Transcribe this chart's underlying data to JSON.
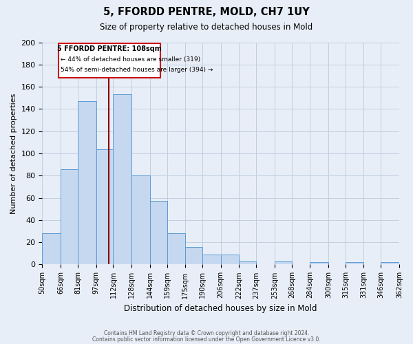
{
  "title": "5, FFORDD PENTRE, MOLD, CH7 1UY",
  "subtitle": "Size of property relative to detached houses in Mold",
  "xlabel": "Distribution of detached houses by size in Mold",
  "ylabel": "Number of detached properties",
  "bin_labels": [
    "50sqm",
    "66sqm",
    "81sqm",
    "97sqm",
    "112sqm",
    "128sqm",
    "144sqm",
    "159sqm",
    "175sqm",
    "190sqm",
    "206sqm",
    "222sqm",
    "237sqm",
    "253sqm",
    "268sqm",
    "284sqm",
    "300sqm",
    "315sqm",
    "331sqm",
    "346sqm",
    "362sqm"
  ],
  "bin_edges": [
    50,
    66,
    81,
    97,
    112,
    128,
    144,
    159,
    175,
    190,
    206,
    222,
    237,
    253,
    268,
    284,
    300,
    315,
    331,
    346,
    362
  ],
  "bar_heights": [
    28,
    86,
    147,
    104,
    153,
    80,
    57,
    28,
    16,
    9,
    9,
    3,
    0,
    3,
    0,
    2,
    0,
    2,
    0,
    2
  ],
  "bar_color": "#c5d8f0",
  "bar_edge_color": "#5b9bd5",
  "property_size": 108,
  "vline_color": "#8b0000",
  "annotation_text_line1": "5 FFORDD PENTRE: 108sqm",
  "annotation_text_line2": "← 44% of detached houses are smaller (319)",
  "annotation_text_line3": "54% of semi-detached houses are larger (394) →",
  "annotation_box_color": "#ffffff",
  "annotation_border_color": "#cc0000",
  "ylim": [
    0,
    200
  ],
  "yticks": [
    0,
    20,
    40,
    60,
    80,
    100,
    120,
    140,
    160,
    180,
    200
  ],
  "grid_color": "#c0cfe0",
  "background_color": "#e8eef7",
  "footer_line1": "Contains HM Land Registry data © Crown copyright and database right 2024.",
  "footer_line2": "Contains public sector information licensed under the Open Government Licence v3.0."
}
